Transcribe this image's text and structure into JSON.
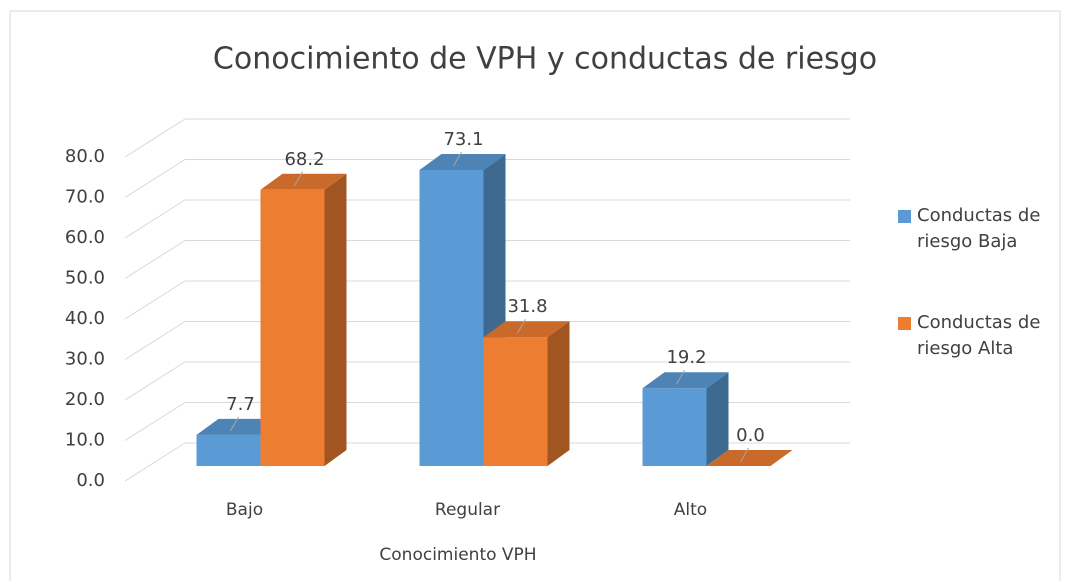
{
  "chart_data": {
    "type": "bar3d",
    "title": "Conocimiento de VPH y conductas de riesgo",
    "x_label": "Conocimiento VPH",
    "categories": [
      "Bajo",
      "Regular",
      "Alto"
    ],
    "series": [
      {
        "name": "Conductas de riesgo Baja",
        "color": "#5b9bd5",
        "values": [
          7.7,
          73.1,
          19.2
        ],
        "value_labels": [
          "7.7",
          "73.1",
          "19.2"
        ]
      },
      {
        "name": "Conductas de riesgo Alta",
        "color": "#ed7d31",
        "values": [
          68.2,
          31.8,
          0.0
        ],
        "value_labels": [
          "68.2",
          "31.8",
          "0.0"
        ]
      }
    ],
    "ylim": [
      0,
      80
    ],
    "yticks": [
      {
        "value": 0,
        "label": "0.0"
      },
      {
        "value": 10,
        "label": "10.0"
      },
      {
        "value": 20,
        "label": "20.0"
      },
      {
        "value": 30,
        "label": "30.0"
      },
      {
        "value": 40,
        "label": "40.0"
      },
      {
        "value": 50,
        "label": "50.0"
      },
      {
        "value": 60,
        "label": "60.0"
      },
      {
        "value": 70,
        "label": "70.0"
      },
      {
        "value": 80,
        "label": "80.0"
      }
    ],
    "grid": true,
    "legend": "right"
  }
}
